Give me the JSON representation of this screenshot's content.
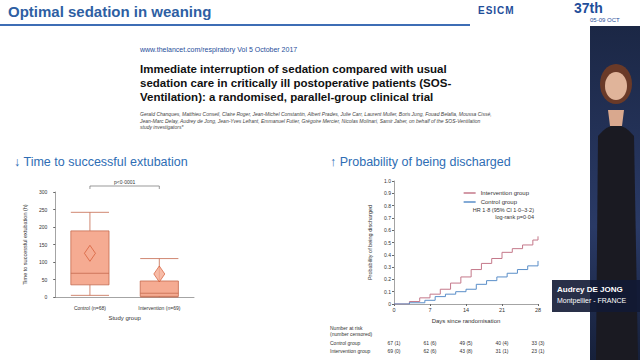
{
  "header": {
    "title": "Optimal sedation in weaning",
    "logo": "ESICM",
    "edition": "37th",
    "dates": "05-09 OCT"
  },
  "reference": {
    "url": "www.thelancet.com/respiratory   Vol 5   October 2017",
    "title": "Immediate interruption of sedation compared with usual sedation care in critically ill postoperative patients (SOS-Ventilation): a randomised, parallel-group clinical trial",
    "authors": "Gerald Chanques, Matthieu Conseil, Claire Roger, Jean-Michel Constantin, Albert Prades, Julie Carr, Laurent Muller, Boris Jung, Fouad Belafia, Moussa Cissé, Jean-Marc Delay, Audrey de Jong, Jean-Yves Lefrant, Emmanuel Futier, Grégoire Mercier, Nicolas Molinari, Samir Jaber, on behalf of the SOS-Ventilation study investigators*"
  },
  "speaker": {
    "name": "Audrey DE JONG",
    "affiliation": "Montpellier - FRANCE"
  },
  "chart_data": [
    {
      "type": "boxplot",
      "title": "↓ Time to successful extubation",
      "xlabel": "Study group",
      "ylabel": "Time to successful extubation (h)",
      "categories": [
        "Control (n=68)",
        "Intervention (n=69)"
      ],
      "values": [
        [
          5,
          35,
          68,
          189,
          242
        ],
        [
          0,
          2,
          11,
          46,
          110
        ]
      ],
      "means": [
        125,
        66
      ],
      "color": "#f5ab92",
      "ylim": [
        0,
        300
      ],
      "yticks": [
        0,
        50,
        100,
        150,
        200,
        250,
        300
      ],
      "annotations": [
        "p<0·0001"
      ]
    },
    {
      "type": "line",
      "title": "↑ Probability of being discharged",
      "xlabel": "Days since randomisation",
      "ylabel": "Probability of being discharged",
      "xlim": [
        0,
        28
      ],
      "xticks": [
        0,
        7,
        14,
        21,
        28
      ],
      "ylim": [
        0,
        1
      ],
      "yticks": [
        0,
        0.1,
        0.2,
        0.3,
        0.4,
        0.5,
        0.6,
        0.7,
        0.8,
        0.9,
        {
          "value": 1,
          "label": "1.0"
        }
      ],
      "line_style": "step",
      "legend": "upper right",
      "series": [
        {
          "name": "Intervention group",
          "color": "#c4788a",
          "x": [
            0,
            3,
            5,
            7,
            9,
            11,
            13,
            15,
            17,
            19,
            21,
            23,
            25,
            27,
            28
          ],
          "values": [
            0,
            0.02,
            0.05,
            0.08,
            0.12,
            0.17,
            0.22,
            0.28,
            0.33,
            0.37,
            0.42,
            0.45,
            0.48,
            0.52,
            0.55
          ]
        },
        {
          "name": "Control group",
          "color": "#5a8ec8",
          "x": [
            0,
            3,
            6,
            8,
            10,
            12,
            14,
            16,
            18,
            20,
            22,
            24,
            26,
            28
          ],
          "values": [
            0,
            0.01,
            0.03,
            0.06,
            0.08,
            0.1,
            0.12,
            0.16,
            0.19,
            0.22,
            0.25,
            0.28,
            0.31,
            0.35
          ]
        }
      ],
      "annotations": [
        "HR 1·8 (95% CI 1·0–3·2)",
        "log-rank p=0·04"
      ],
      "risk_table": {
        "title": "Number at risk",
        "subtitle": "(number censored)",
        "rows": [
          {
            "name": "Control group",
            "values": [
              "67 (1)",
              "61 (6)",
              "49 (5)",
              "40 (4)",
              "33 (3)"
            ]
          },
          {
            "name": "Intervention group",
            "values": [
              "69 (0)",
              "62 (6)",
              "43 (8)",
              "31 (1)",
              "23 (1)"
            ]
          }
        ]
      }
    }
  ]
}
